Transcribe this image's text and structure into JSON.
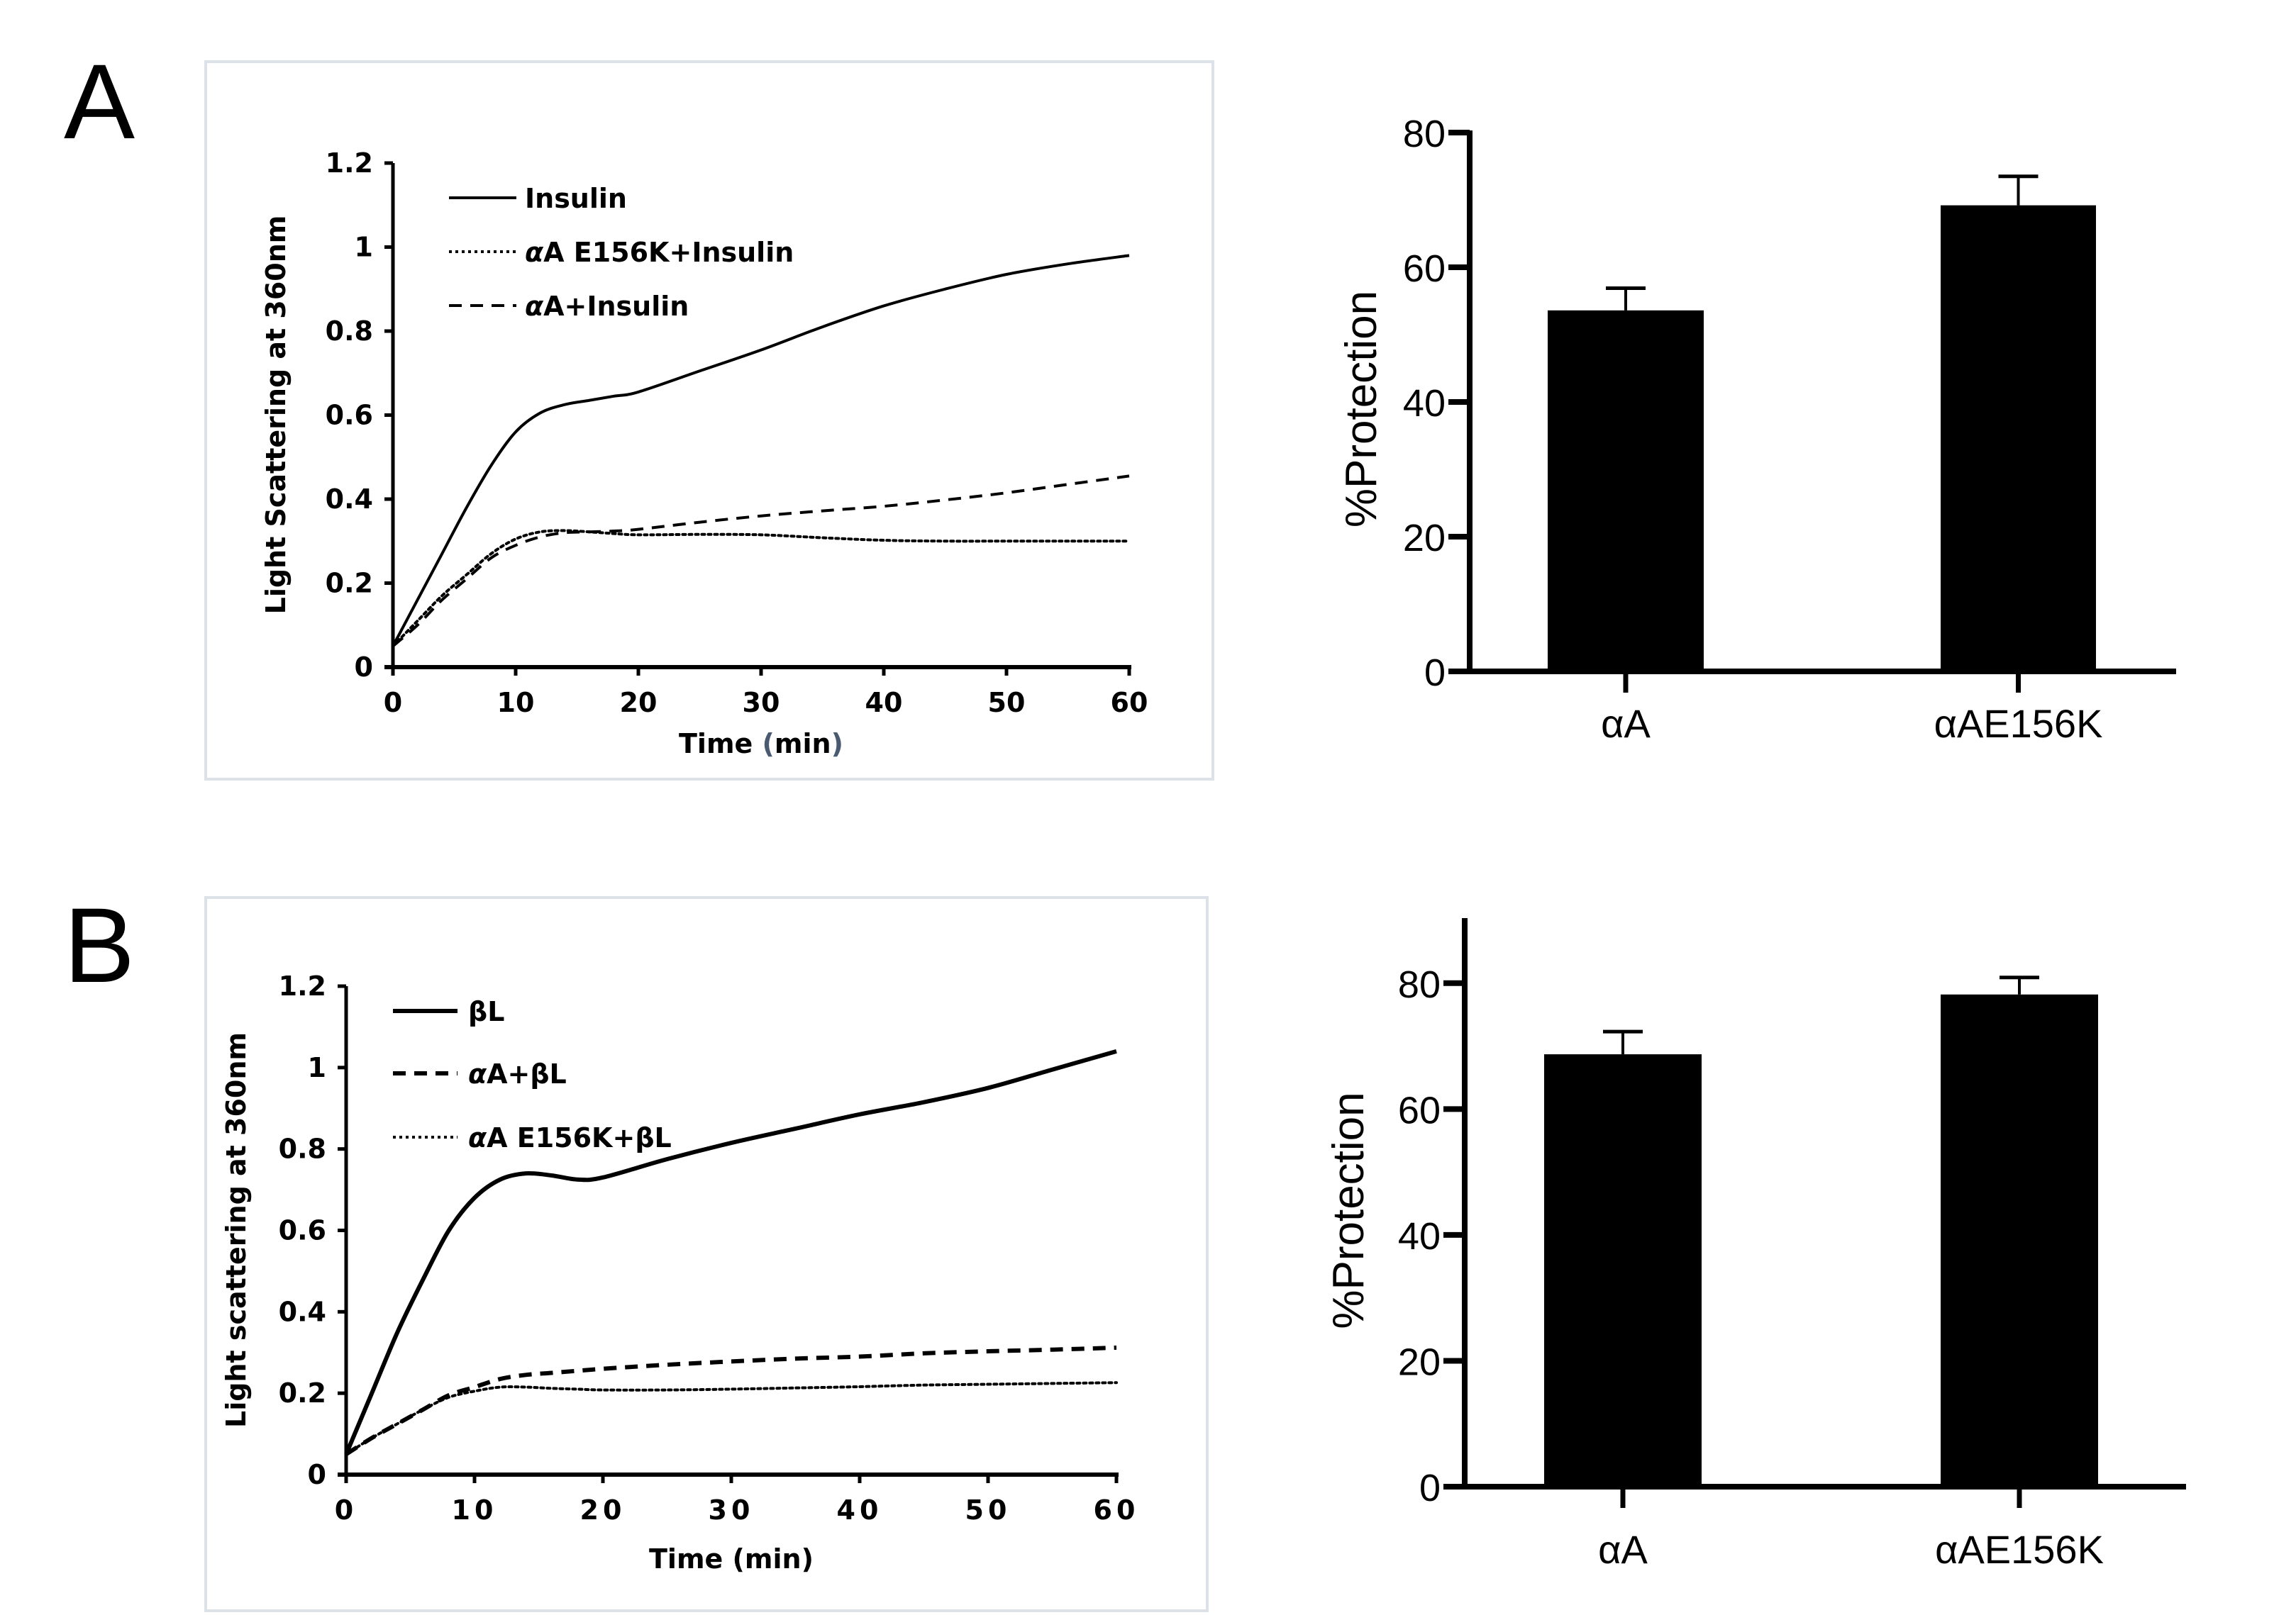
{
  "figure": {
    "panel_labels": [
      "A",
      "B"
    ]
  },
  "colors": {
    "line": "#000000",
    "bar": "#000000",
    "frame": "#dde1e8",
    "paren_accent": "#4a5a70"
  },
  "chart_data": [
    {
      "id": "A-line",
      "panel": "A",
      "type": "line",
      "title": "",
      "xlabel": "Time (min)",
      "xlabel_parts": [
        "Time ",
        "(",
        "min",
        ")"
      ],
      "ylabel": "Light Scattering at 360nm",
      "xlim": [
        0,
        60
      ],
      "ylim": [
        0,
        1.2
      ],
      "xticks": [
        "0",
        "10",
        "20",
        "30",
        "40",
        "50",
        "60"
      ],
      "yticks": [
        "0",
        "0.2",
        "0.4",
        "0.6",
        "0.8",
        "1",
        "1.2"
      ],
      "grid": false,
      "legend_position": "top-left",
      "series": [
        {
          "name": "Insulin",
          "style": "solid",
          "x": [
            0,
            2,
            4,
            6,
            8,
            10,
            12,
            14,
            16,
            18,
            20,
            25,
            30,
            35,
            40,
            45,
            50,
            55,
            60
          ],
          "y": [
            0.05,
            0.16,
            0.27,
            0.38,
            0.48,
            0.56,
            0.605,
            0.625,
            0.635,
            0.645,
            0.655,
            0.705,
            0.755,
            0.81,
            0.86,
            0.9,
            0.935,
            0.96,
            0.98
          ]
        },
        {
          "name": "αA E156K+Insulin",
          "style": "dotted",
          "x": [
            0,
            2,
            4,
            6,
            8,
            10,
            12,
            14,
            16,
            18,
            20,
            25,
            30,
            35,
            40,
            45,
            50,
            55,
            60
          ],
          "y": [
            0.05,
            0.11,
            0.17,
            0.22,
            0.27,
            0.305,
            0.322,
            0.325,
            0.322,
            0.318,
            0.315,
            0.316,
            0.315,
            0.308,
            0.302,
            0.3,
            0.3,
            0.3,
            0.3
          ]
        },
        {
          "name": "αA+Insulin",
          "style": "dashed",
          "x": [
            0,
            2,
            4,
            6,
            8,
            10,
            12,
            14,
            16,
            18,
            20,
            25,
            30,
            35,
            40,
            45,
            50,
            55,
            60
          ],
          "y": [
            0.05,
            0.1,
            0.16,
            0.21,
            0.26,
            0.29,
            0.31,
            0.32,
            0.322,
            0.324,
            0.328,
            0.345,
            0.36,
            0.372,
            0.383,
            0.398,
            0.415,
            0.435,
            0.455
          ]
        }
      ]
    },
    {
      "id": "A-bar",
      "panel": "A",
      "type": "bar",
      "title": "",
      "xlabel": "",
      "ylabel": "%Protection",
      "ylim": [
        0,
        80
      ],
      "yticks": [
        "0",
        "20",
        "40",
        "60",
        "80"
      ],
      "grid": false,
      "categories": [
        "αA",
        "αAE156K"
      ],
      "values": [
        53.6,
        69.2
      ],
      "error_upper": [
        56.9,
        73.5
      ]
    },
    {
      "id": "B-line",
      "panel": "B",
      "type": "line",
      "title": "",
      "xlabel": "Time (min)",
      "ylabel": "Light scattering at 360nm",
      "xlim": [
        0,
        60
      ],
      "ylim": [
        0,
        1.2
      ],
      "xticks": [
        "0",
        "10",
        "20",
        "30",
        "40",
        "50",
        "60"
      ],
      "yticks": [
        "0",
        "0.2",
        "0.4",
        "0.6",
        "0.8",
        "1",
        "1.2"
      ],
      "grid": false,
      "legend_position": "top-left",
      "series": [
        {
          "name": "βL",
          "style": "solid",
          "x": [
            0,
            2,
            4,
            6,
            8,
            10,
            12,
            14,
            16,
            18,
            20,
            25,
            30,
            35,
            40,
            45,
            50,
            55,
            60
          ],
          "y": [
            0.05,
            0.2,
            0.35,
            0.48,
            0.6,
            0.68,
            0.725,
            0.74,
            0.735,
            0.725,
            0.73,
            0.775,
            0.815,
            0.85,
            0.885,
            0.915,
            0.95,
            0.995,
            1.04
          ]
        },
        {
          "name": "αA+βL",
          "style": "dashed",
          "x": [
            0,
            2,
            4,
            6,
            8,
            10,
            12,
            14,
            16,
            18,
            20,
            25,
            30,
            35,
            40,
            45,
            50,
            55,
            60
          ],
          "y": [
            0.05,
            0.09,
            0.125,
            0.16,
            0.195,
            0.215,
            0.235,
            0.245,
            0.25,
            0.255,
            0.26,
            0.27,
            0.278,
            0.285,
            0.29,
            0.298,
            0.303,
            0.307,
            0.312
          ]
        },
        {
          "name": "αA E156K+βL",
          "style": "dotted",
          "x": [
            0,
            2,
            4,
            6,
            8,
            10,
            12,
            14,
            16,
            18,
            20,
            25,
            30,
            35,
            40,
            45,
            50,
            55,
            60
          ],
          "y": [
            0.05,
            0.09,
            0.125,
            0.16,
            0.19,
            0.205,
            0.215,
            0.215,
            0.212,
            0.21,
            0.208,
            0.208,
            0.21,
            0.213,
            0.216,
            0.22,
            0.222,
            0.224,
            0.226
          ]
        }
      ]
    },
    {
      "id": "B-bar",
      "panel": "B",
      "type": "bar",
      "title": "",
      "xlabel": "",
      "ylabel": "%Protection",
      "ylim": [
        0,
        90
      ],
      "yticks": [
        "0",
        "20",
        "40",
        "60",
        "80"
      ],
      "grid": false,
      "categories": [
        "αA",
        "αAE156K"
      ],
      "values": [
        68.7,
        78.2
      ],
      "error_upper": [
        72.3,
        80.9
      ]
    }
  ]
}
